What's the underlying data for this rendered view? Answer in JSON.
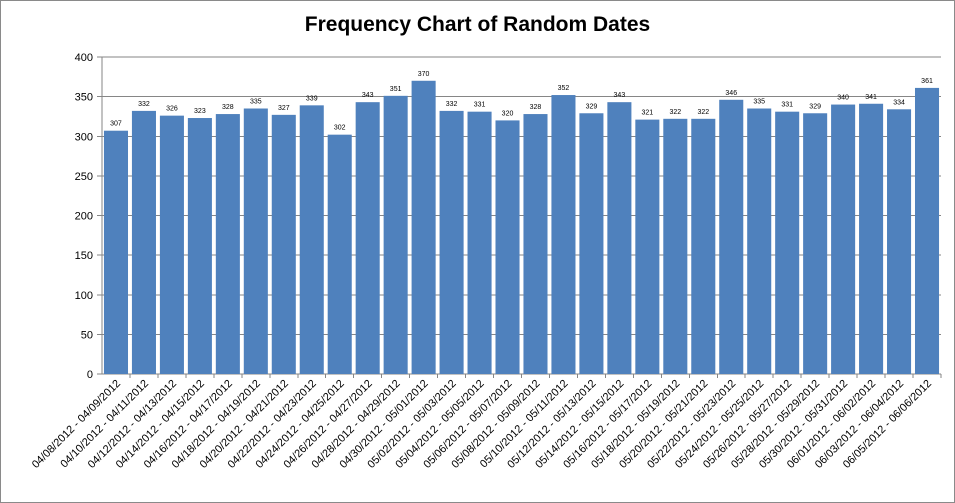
{
  "chart_data": {
    "type": "bar",
    "title": "Frequency Chart of Random Dates",
    "xlabel": "",
    "ylabel": "",
    "ylim": [
      0,
      400
    ],
    "yticks": [
      0,
      50,
      100,
      150,
      200,
      250,
      300,
      350,
      400
    ],
    "grid": true,
    "legend": "none",
    "bar_color": "#4F81BD",
    "categories": [
      "04/08/2012 - 04/09/2012",
      "04/10/2012 - 04/11/2012",
      "04/12/2012 - 04/13/2012",
      "04/14/2012 - 04/15/2012",
      "04/16/2012 - 04/17/2012",
      "04/18/2012 - 04/19/2012",
      "04/20/2012 - 04/21/2012",
      "04/22/2012 - 04/23/2012",
      "04/24/2012 - 04/25/2012",
      "04/26/2012 - 04/27/2012",
      "04/28/2012 - 04/29/2012",
      "04/30/2012 - 05/01/2012",
      "05/02/2012 - 05/03/2012",
      "05/04/2012 - 05/05/2012",
      "05/06/2012 - 05/07/2012",
      "05/08/2012 - 05/09/2012",
      "05/10/2012 - 05/11/2012",
      "05/12/2012 - 05/13/2012",
      "05/14/2012 - 05/15/2012",
      "05/16/2012 - 05/17/2012",
      "05/18/2012 - 05/19/2012",
      "05/20/2012 - 05/21/2012",
      "05/22/2012 - 05/23/2012",
      "05/24/2012 - 05/25/2012",
      "05/26/2012 - 05/27/2012",
      "05/28/2012 - 05/29/2012",
      "05/30/2012 - 05/31/2012",
      "06/01/2012 - 06/02/2012",
      "06/03/2012 - 06/04/2012",
      "06/05/2012 - 06/06/2012"
    ],
    "values": [
      307,
      332,
      326,
      323,
      328,
      335,
      327,
      339,
      302,
      343,
      351,
      370,
      332,
      331,
      320,
      328,
      352,
      329,
      343,
      321,
      322,
      322,
      346,
      335,
      331,
      329,
      340,
      341,
      334,
      361
    ]
  }
}
